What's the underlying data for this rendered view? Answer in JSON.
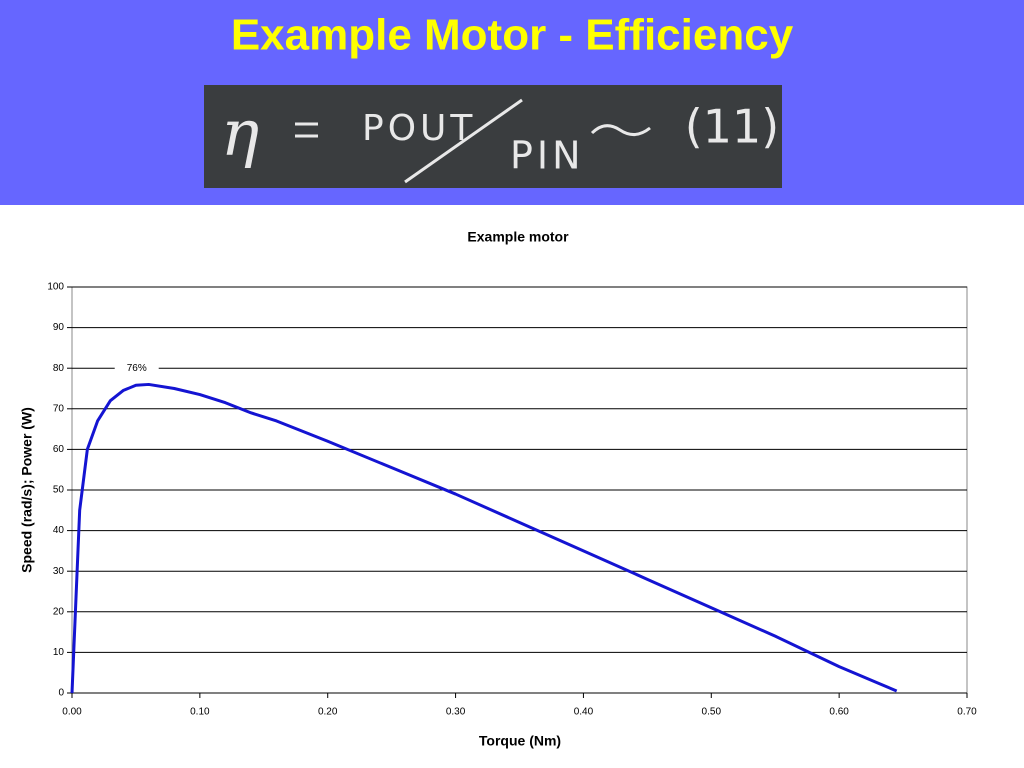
{
  "header": {
    "title": "Example Motor - Efficiency",
    "formula": {
      "lhs": "η",
      "numerator": "POUT",
      "denominator": "PIN",
      "note": "(11)"
    }
  },
  "chart_data": {
    "type": "line",
    "title": "Example motor",
    "x_label": "Torque  (Nm)",
    "y_label": "Speed (rad/s);  Power (W)",
    "x": [
      0,
      0.006,
      0.012,
      0.02,
      0.03,
      0.04,
      0.05,
      0.06,
      0.08,
      0.1,
      0.12,
      0.14,
      0.16,
      0.18,
      0.2,
      0.25,
      0.3,
      0.35,
      0.4,
      0.45,
      0.5,
      0.55,
      0.6,
      0.63,
      0.645
    ],
    "series": [
      {
        "color": "#1414d2",
        "values": [
          0,
          45,
          60,
          67,
          72,
          74.5,
          75.8,
          76,
          75,
          73.5,
          71.5,
          69,
          67,
          64.5,
          62,
          55.5,
          49,
          42,
          35,
          28,
          21,
          14,
          6.5,
          2.5,
          0.5
        ]
      }
    ],
    "annotations": [
      {
        "text": "76%",
        "value": 76
      }
    ],
    "xlim": [
      0,
      0.7
    ],
    "ylim": [
      0,
      100
    ],
    "xticks": [
      {
        "value": 0,
        "label": "0.00"
      },
      {
        "value": 0.1,
        "label": "0.10"
      },
      {
        "value": 0.2,
        "label": "0.20"
      },
      {
        "value": 0.3,
        "label": "0.30"
      },
      {
        "value": 0.4,
        "label": "0.40"
      },
      {
        "value": 0.5,
        "label": "0.50"
      },
      {
        "value": 0.6,
        "label": "0.60"
      },
      {
        "value": 0.7,
        "label": "0.70"
      }
    ],
    "yticks": [
      0,
      10,
      20,
      30,
      40,
      50,
      60,
      70,
      80,
      90,
      100
    ],
    "grid": true
  }
}
